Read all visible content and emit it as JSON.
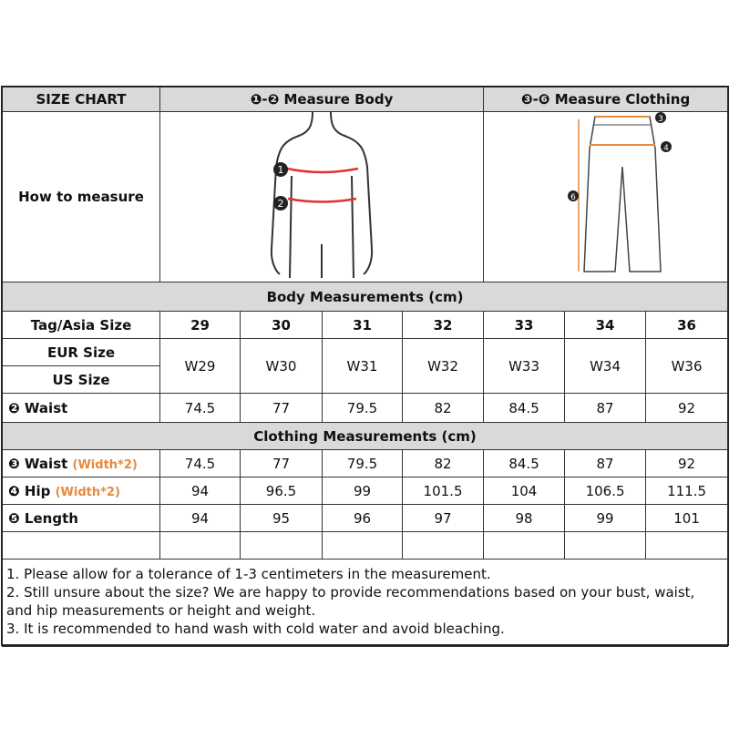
{
  "header": {
    "title": "SIZE CHART",
    "body_label": "❶-❷ Measure Body",
    "clothing_label": "❸-❻ Measure Clothing"
  },
  "how_to_measure": "How to measure",
  "figure_markers": {
    "body": [
      "1",
      "2"
    ],
    "clothing": [
      "3",
      "4",
      "6"
    ]
  },
  "body_section": "Body Measurements (cm)",
  "clothing_section": "Clothing Measurements  (cm)",
  "sizes": {
    "label": "Tag/Asia Size",
    "values": [
      "29",
      "30",
      "31",
      "32",
      "33",
      "34",
      "36"
    ]
  },
  "eur_label": "EUR Size",
  "us_label": "US Size",
  "eur_us": [
    "W29",
    "W30",
    "W31",
    "W32",
    "W33",
    "W34",
    "W36"
  ],
  "body_waist": {
    "label": "❷ Waist",
    "values": [
      "74.5",
      "77",
      "79.5",
      "82",
      "84.5",
      "87",
      "92"
    ]
  },
  "clothing_rows": [
    {
      "label": "❸ Waist",
      "note": "(Width*2)",
      "values": [
        "74.5",
        "77",
        "79.5",
        "82",
        "84.5",
        "87",
        "92"
      ]
    },
    {
      "label": "❹ Hip",
      "note": "(Width*2)",
      "values": [
        "94",
        "96.5",
        "99",
        "101.5",
        "104",
        "106.5",
        "111.5"
      ]
    },
    {
      "label": "❺ Length",
      "note": "",
      "values": [
        "94",
        "95",
        "96",
        "97",
        "98",
        "99",
        "101"
      ]
    }
  ],
  "notes": [
    "1. Please allow for a tolerance of 1-3 centimeters in the measurement.",
    "2. Still unsure about the size? We are happy to provide recommendations based on your bust, waist, and hip measurements or height and weight.",
    "3. It is recommended to hand wash with cold water and avoid bleaching."
  ],
  "colors": {
    "header_bg": "#d9d9d9",
    "accent_orange": "#e8893a",
    "measure_red": "#e03030"
  }
}
